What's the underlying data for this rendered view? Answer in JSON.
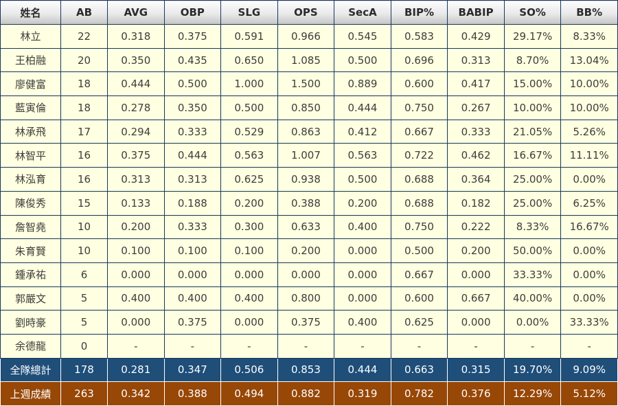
{
  "chart_data": {
    "type": "table",
    "title": "",
    "columns": [
      "姓名",
      "AB",
      "AVG",
      "OBP",
      "SLG",
      "OPS",
      "SecA",
      "BIP%",
      "BABIP",
      "SO%",
      "BB%"
    ],
    "rows": [
      [
        "林立",
        "22",
        "0.318",
        "0.375",
        "0.591",
        "0.966",
        "0.545",
        "0.583",
        "0.429",
        "29.17%",
        "8.33%"
      ],
      [
        "王柏融",
        "20",
        "0.350",
        "0.435",
        "0.650",
        "1.085",
        "0.500",
        "0.696",
        "0.313",
        "8.70%",
        "13.04%"
      ],
      [
        "廖健富",
        "18",
        "0.444",
        "0.500",
        "1.000",
        "1.500",
        "0.889",
        "0.600",
        "0.417",
        "15.00%",
        "10.00%"
      ],
      [
        "藍寅倫",
        "18",
        "0.278",
        "0.350",
        "0.500",
        "0.850",
        "0.444",
        "0.750",
        "0.267",
        "10.00%",
        "10.00%"
      ],
      [
        "林承飛",
        "17",
        "0.294",
        "0.333",
        "0.529",
        "0.863",
        "0.412",
        "0.667",
        "0.333",
        "21.05%",
        "5.26%"
      ],
      [
        "林智平",
        "16",
        "0.375",
        "0.444",
        "0.563",
        "1.007",
        "0.563",
        "0.722",
        "0.462",
        "16.67%",
        "11.11%"
      ],
      [
        "林泓育",
        "16",
        "0.313",
        "0.313",
        "0.625",
        "0.938",
        "0.500",
        "0.688",
        "0.364",
        "25.00%",
        "0.00%"
      ],
      [
        "陳俊秀",
        "15",
        "0.133",
        "0.188",
        "0.200",
        "0.388",
        "0.200",
        "0.688",
        "0.182",
        "25.00%",
        "6.25%"
      ],
      [
        "詹智堯",
        "10",
        "0.200",
        "0.333",
        "0.300",
        "0.633",
        "0.400",
        "0.750",
        "0.222",
        "8.33%",
        "16.67%"
      ],
      [
        "朱育賢",
        "10",
        "0.100",
        "0.100",
        "0.100",
        "0.200",
        "0.000",
        "0.500",
        "0.200",
        "50.00%",
        "0.00%"
      ],
      [
        "鍾承祐",
        "6",
        "0.000",
        "0.000",
        "0.000",
        "0.000",
        "0.000",
        "0.667",
        "0.000",
        "33.33%",
        "0.00%"
      ],
      [
        "郭嚴文",
        "5",
        "0.400",
        "0.400",
        "0.400",
        "0.800",
        "0.000",
        "0.600",
        "0.667",
        "40.00%",
        "0.00%"
      ],
      [
        "劉時豪",
        "5",
        "0.000",
        "0.375",
        "0.000",
        "0.375",
        "0.400",
        "0.625",
        "0.000",
        "0.00%",
        "33.33%"
      ],
      [
        "余德龍",
        "0",
        "-",
        "-",
        "-",
        "-",
        "-",
        "-",
        "-",
        "-",
        "-"
      ]
    ],
    "summary_rows": [
      {
        "label": "全隊總計",
        "style": "total",
        "values": [
          "178",
          "0.281",
          "0.347",
          "0.506",
          "0.853",
          "0.444",
          "0.663",
          "0.315",
          "19.70%",
          "9.09%"
        ]
      },
      {
        "label": "上週成績",
        "style": "lastweek",
        "values": [
          "263",
          "0.342",
          "0.388",
          "0.494",
          "0.882",
          "0.319",
          "0.782",
          "0.376",
          "12.29%",
          "5.12%"
        ]
      }
    ]
  },
  "colors": {
    "border": "#16365C",
    "cell_bg": "#FFFFE1",
    "data_text": "#3D3D3D",
    "header_text": "#2B2B2B",
    "total_bg": "#1F4E79",
    "lastweek_bg": "#974706",
    "summary_text": "#FFFFFF"
  }
}
